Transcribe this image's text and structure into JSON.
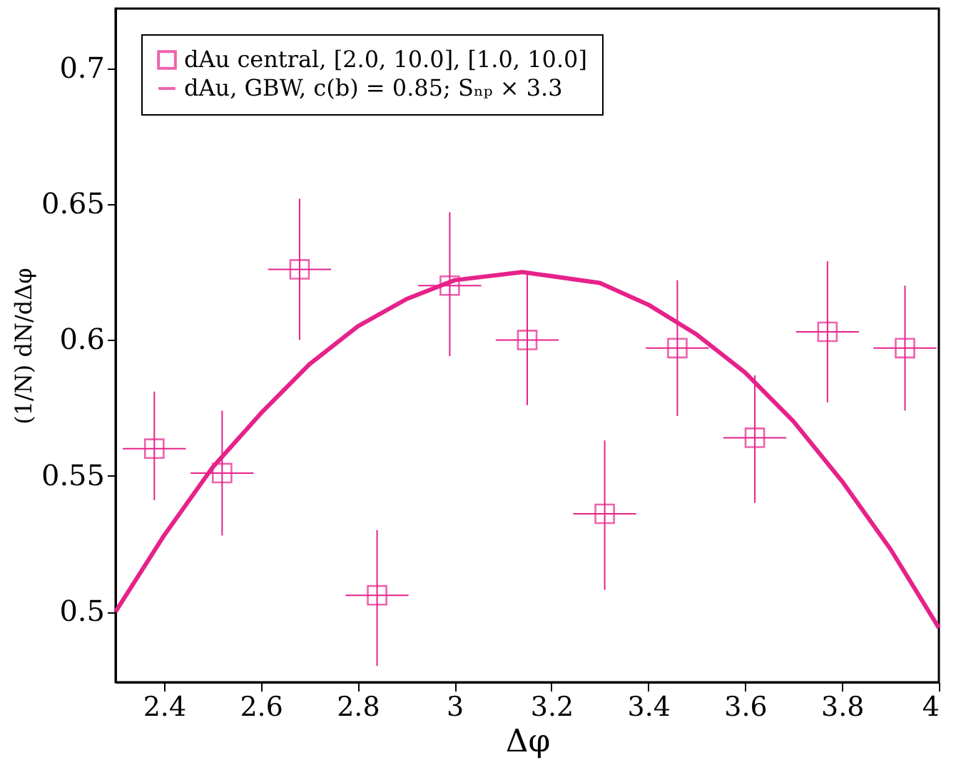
{
  "chart_data": {
    "type": "scatter",
    "xlabel": "Δφ",
    "ylabel": "(1/N) dN/dΔφ",
    "xlim": [
      2.3,
      4.0
    ],
    "xticks": [
      2.4,
      2.6,
      2.8,
      3,
      3.2,
      3.4,
      3.6,
      3.8,
      4
    ],
    "ylim": [
      0.474,
      0.722
    ],
    "yticks": [
      0.5,
      0.55,
      0.6,
      0.65,
      0.7
    ],
    "legend": "top left",
    "grid": false,
    "series": [
      {
        "name": "dAu central, [2.0, 10.0], [1.0, 10.0]",
        "color": "#e6228a",
        "marker": "square",
        "x": [
          2.38,
          2.52,
          2.68,
          2.84,
          2.99,
          3.15,
          3.31,
          3.46,
          3.62,
          3.77,
          3.93
        ],
        "values": [
          0.56,
          0.551,
          0.626,
          0.506,
          0.62,
          0.6,
          0.536,
          0.597,
          0.564,
          0.603,
          0.597
        ],
        "errors": [
          [
            0.541,
            0.581
          ],
          [
            0.528,
            0.574
          ],
          [
            0.6,
            0.652
          ],
          [
            0.48,
            0.53
          ],
          [
            0.594,
            0.647
          ],
          [
            0.576,
            0.625
          ],
          [
            0.508,
            0.563
          ],
          [
            0.572,
            0.622
          ],
          [
            0.54,
            0.587
          ],
          [
            0.577,
            0.629
          ],
          [
            0.574,
            0.62
          ]
        ],
        "xerrors": [
          0.065,
          0.065,
          0.065,
          0.065,
          0.065,
          0.065,
          0.065,
          0.065,
          0.065,
          0.065,
          0.065
        ]
      },
      {
        "type": "line",
        "name": "dAu, GBW, c(b) = 0.85; Sₙₚ × 3.3",
        "color": "#e6228a",
        "marker": "none",
        "line_style": "solid",
        "x": [
          2.3,
          2.4,
          2.5,
          2.6,
          2.7,
          2.8,
          2.9,
          3.0,
          3.14,
          3.3,
          3.4,
          3.5,
          3.6,
          3.7,
          3.8,
          3.9,
          4.0
        ],
        "values": [
          0.5,
          0.528,
          0.553,
          0.573,
          0.591,
          0.605,
          0.615,
          0.622,
          0.625,
          0.621,
          0.613,
          0.602,
          0.588,
          0.57,
          0.548,
          0.523,
          0.494
        ]
      }
    ]
  }
}
